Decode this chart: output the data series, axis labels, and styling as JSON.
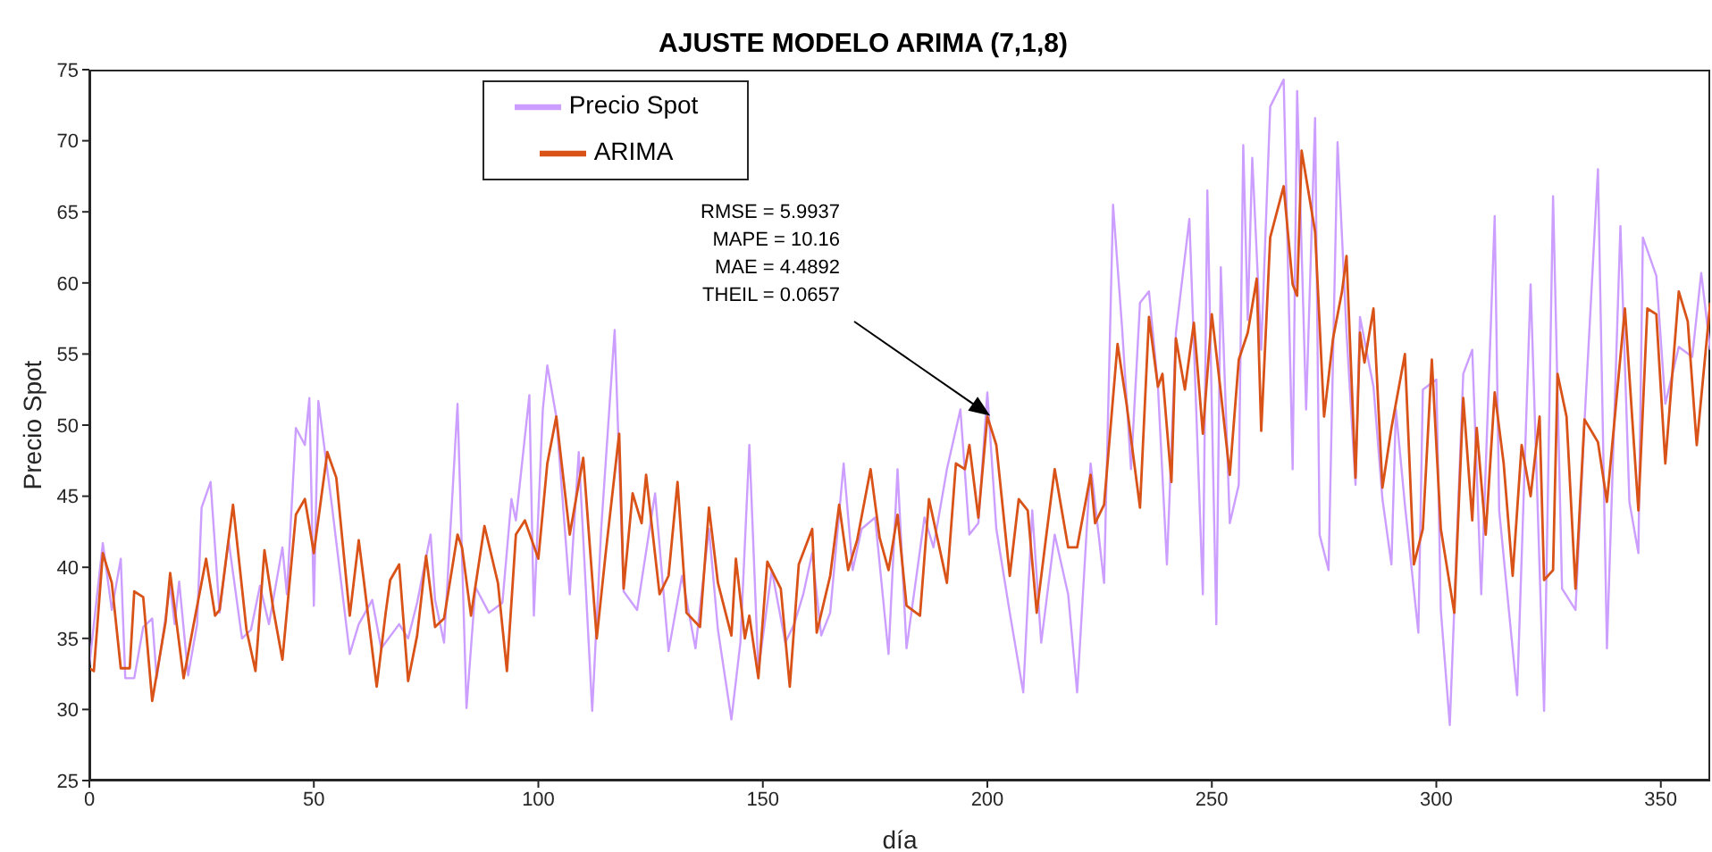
{
  "chart_data": {
    "type": "line",
    "title": "AJUSTE MODELO ARIMA (7,1,8)",
    "xlabel": "día",
    "ylabel": "Precio Spot",
    "xlim": [
      0,
      361
    ],
    "xticks": [
      0,
      50,
      100,
      150,
      200,
      250,
      300,
      350
    ],
    "ylim": [
      25,
      75
    ],
    "yticks": [
      25,
      30,
      35,
      40,
      45,
      50,
      55,
      60,
      65,
      70,
      75
    ],
    "grid": false,
    "legend": "top left",
    "marker": "none",
    "line_style": "solid",
    "annotations": [
      "RMSE = 5.9937\nMAPE  = 10.16\nMAE  = 4.4892\nTHEIL = 0.0657"
    ],
    "series": [
      {
        "name": "Precio Spot",
        "color": "#cc9eff",
        "x": [
          0,
          3,
          5,
          7,
          8,
          10,
          12,
          14,
          15,
          18,
          19,
          20,
          22,
          24,
          25,
          27,
          29,
          31,
          34,
          36,
          38,
          40,
          43,
          44,
          46,
          48,
          49,
          50,
          51,
          54,
          58,
          60,
          63,
          65,
          69,
          71,
          73,
          76,
          77,
          79,
          82,
          84,
          86,
          89,
          92,
          94,
          95,
          98,
          99,
          101,
          102,
          104,
          107,
          109,
          112,
          114,
          117,
          119,
          122,
          126,
          129,
          132,
          135,
          138,
          140,
          143,
          145,
          147,
          149,
          152,
          155,
          157,
          159,
          161,
          163,
          165,
          168,
          170,
          172,
          175,
          178,
          180,
          182,
          186,
          188,
          191,
          194,
          196,
          198,
          200,
          202,
          205,
          208,
          210,
          212,
          215,
          218,
          220,
          223,
          226,
          228,
          230,
          232,
          234,
          236,
          238,
          240,
          242,
          245,
          248,
          249,
          251,
          252,
          254,
          256,
          257,
          258,
          259,
          261,
          263,
          266,
          268,
          269,
          271,
          273,
          274,
          276,
          278,
          280,
          282,
          283,
          286,
          288,
          290,
          291,
          293,
          296,
          297,
          300,
          301,
          303,
          306,
          308,
          310,
          313,
          314,
          318,
          321,
          324,
          326,
          328,
          331,
          333,
          336,
          338,
          341,
          343,
          345,
          346,
          349,
          351,
          354,
          357,
          359,
          361
        ],
        "values": [
          33.1,
          41.7,
          37.0,
          40.6,
          32.2,
          32.2,
          35.8,
          36.4,
          32.2,
          38.7,
          36.0,
          39.0,
          32.4,
          36.0,
          44.2,
          46.0,
          36.8,
          41.9,
          35.0,
          35.6,
          38.7,
          36.0,
          41.4,
          38.1,
          49.8,
          48.6,
          51.9,
          37.3,
          51.7,
          44.4,
          33.9,
          36.0,
          37.7,
          34.3,
          36.0,
          35.0,
          37.5,
          42.3,
          37.7,
          34.7,
          51.5,
          30.1,
          38.6,
          36.8,
          37.5,
          44.8,
          43.3,
          52.1,
          36.6,
          51.1,
          54.2,
          50.6,
          38.1,
          48.1,
          29.9,
          42.7,
          56.7,
          38.3,
          37.0,
          45.2,
          34.1,
          39.4,
          34.3,
          42.7,
          35.6,
          29.3,
          34.7,
          48.6,
          32.7,
          39.8,
          34.7,
          36.0,
          38.1,
          41.0,
          35.2,
          36.8,
          47.3,
          39.8,
          42.7,
          43.5,
          33.9,
          46.9,
          34.3,
          43.5,
          41.4,
          46.9,
          51.1,
          42.3,
          43.1,
          52.3,
          42.7,
          36.8,
          31.2,
          44.0,
          34.7,
          42.3,
          38.1,
          31.2,
          47.3,
          38.9,
          65.5,
          56.9,
          46.9,
          58.6,
          59.4,
          52.7,
          40.2,
          56.5,
          64.5,
          38.1,
          66.5,
          36.0,
          61.1,
          43.1,
          45.8,
          69.7,
          57.4,
          68.8,
          55.3,
          72.4,
          74.3,
          46.9,
          73.5,
          51.1,
          71.6,
          42.3,
          39.8,
          69.9,
          56.5,
          45.8,
          57.6,
          52.7,
          44.8,
          40.2,
          51.1,
          44.4,
          35.4,
          52.5,
          53.2,
          37.0,
          28.9,
          53.6,
          55.3,
          38.1,
          64.7,
          44.0,
          31.0,
          59.9,
          29.9,
          66.1,
          38.5,
          37.0,
          50.2,
          68.0,
          34.3,
          64.0,
          44.6,
          41.0,
          63.2,
          60.5,
          51.5,
          55.5,
          54.8,
          60.7,
          55.3
        ]
      },
      {
        "name": "ARIMA",
        "color": "#d95319",
        "x": [
          0,
          1,
          3,
          5,
          7,
          9,
          10,
          12,
          14,
          17,
          18,
          21,
          23,
          26,
          28,
          29,
          32,
          35,
          37,
          39,
          41,
          43,
          46,
          48,
          50,
          53,
          55,
          58,
          60,
          61,
          64,
          66,
          67,
          69,
          71,
          73,
          75,
          77,
          79,
          82,
          83,
          85,
          88,
          91,
          93,
          95,
          97,
          100,
          102,
          104,
          107,
          110,
          113,
          115,
          118,
          119,
          121,
          123,
          124,
          127,
          129,
          131,
          133,
          136,
          138,
          140,
          143,
          144,
          146,
          147,
          149,
          151,
          154,
          156,
          158,
          161,
          162,
          165,
          167,
          169,
          171,
          174,
          176,
          178,
          180,
          182,
          185,
          187,
          190,
          191,
          193,
          195,
          196,
          198,
          200,
          202,
          205,
          207,
          209,
          211,
          213,
          215,
          218,
          220,
          223,
          224,
          226,
          229,
          231,
          234,
          236,
          238,
          239,
          241,
          242,
          244,
          246,
          248,
          250,
          252,
          254,
          256,
          258,
          260,
          261,
          263,
          266,
          268,
          269,
          270,
          273,
          275,
          277,
          279,
          280,
          282,
          283,
          284,
          286,
          288,
          290,
          293,
          295,
          297,
          299,
          301,
          304,
          306,
          308,
          309,
          311,
          313,
          315,
          317,
          319,
          321,
          323,
          324,
          326,
          327,
          329,
          331,
          333,
          336,
          338,
          342,
          345,
          347,
          349,
          351,
          354,
          356,
          358,
          361
        ],
        "values": [
          32.9,
          32.7,
          41.0,
          38.9,
          32.9,
          32.9,
          38.3,
          37.9,
          30.6,
          36.2,
          39.6,
          32.2,
          35.6,
          40.6,
          36.6,
          37.0,
          44.4,
          35.6,
          32.7,
          41.2,
          37.0,
          33.5,
          43.7,
          44.8,
          41.0,
          48.1,
          46.3,
          36.6,
          41.9,
          39.4,
          31.6,
          36.8,
          39.1,
          40.2,
          32.0,
          35.2,
          40.8,
          35.8,
          36.4,
          42.3,
          41.4,
          36.6,
          42.9,
          38.9,
          32.7,
          42.3,
          43.3,
          40.6,
          47.3,
          50.6,
          42.3,
          47.7,
          35.0,
          41.0,
          49.4,
          38.5,
          45.2,
          43.1,
          46.5,
          38.1,
          39.4,
          46.0,
          36.8,
          35.8,
          44.2,
          38.9,
          35.2,
          40.6,
          35.0,
          36.6,
          32.2,
          40.4,
          38.5,
          31.6,
          40.2,
          42.7,
          35.4,
          39.4,
          44.4,
          39.8,
          41.9,
          46.9,
          42.1,
          39.8,
          43.7,
          37.3,
          36.6,
          44.8,
          40.4,
          38.9,
          47.3,
          46.9,
          48.6,
          43.5,
          50.6,
          48.6,
          39.4,
          44.8,
          44.0,
          36.8,
          41.9,
          46.9,
          41.4,
          41.4,
          46.5,
          43.1,
          44.4,
          55.7,
          51.5,
          44.2,
          57.6,
          52.7,
          53.6,
          46.0,
          56.1,
          52.5,
          57.2,
          49.4,
          57.8,
          52.3,
          46.5,
          54.6,
          56.5,
          60.3,
          49.6,
          63.2,
          66.8,
          59.9,
          59.1,
          69.3,
          63.6,
          50.6,
          56.1,
          59.4,
          61.9,
          46.3,
          56.5,
          54.4,
          58.2,
          45.6,
          49.8,
          55.0,
          40.2,
          42.7,
          54.6,
          42.7,
          36.8,
          51.9,
          43.3,
          49.8,
          42.3,
          52.3,
          47.3,
          39.4,
          48.6,
          45.0,
          50.6,
          39.1,
          39.8,
          53.6,
          50.6,
          38.5,
          50.4,
          48.8,
          44.6,
          58.2,
          44.0,
          58.2,
          57.8,
          47.3,
          59.4,
          57.3,
          48.6,
          58.6
        ]
      }
    ]
  }
}
